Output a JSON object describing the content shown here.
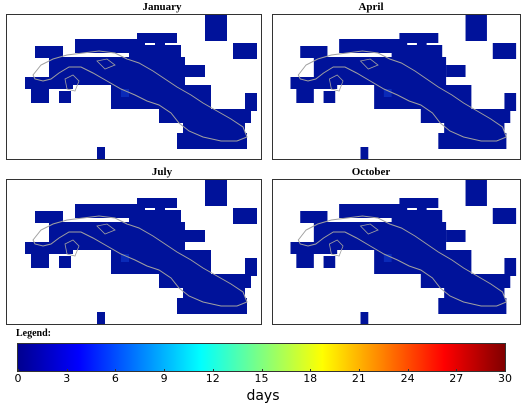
{
  "panels": [
    {
      "title": "January"
    },
    {
      "title": "April"
    },
    {
      "title": "July"
    },
    {
      "title": "October"
    }
  ],
  "legend": {
    "label": "Legend:",
    "unit": "days",
    "range": [
      0,
      30
    ],
    "ticks": [
      "0",
      "3",
      "6",
      "9",
      "12",
      "15",
      "18",
      "21",
      "24",
      "27",
      "30"
    ],
    "colors": [
      "#00008f",
      "#0000ff",
      "#0080ff",
      "#00ffff",
      "#80ff80",
      "#ffff00",
      "#ff8000",
      "#ff0000",
      "#800000"
    ]
  },
  "colors": {
    "cell": "#00129a",
    "outline": "#a0a0a0"
  }
}
